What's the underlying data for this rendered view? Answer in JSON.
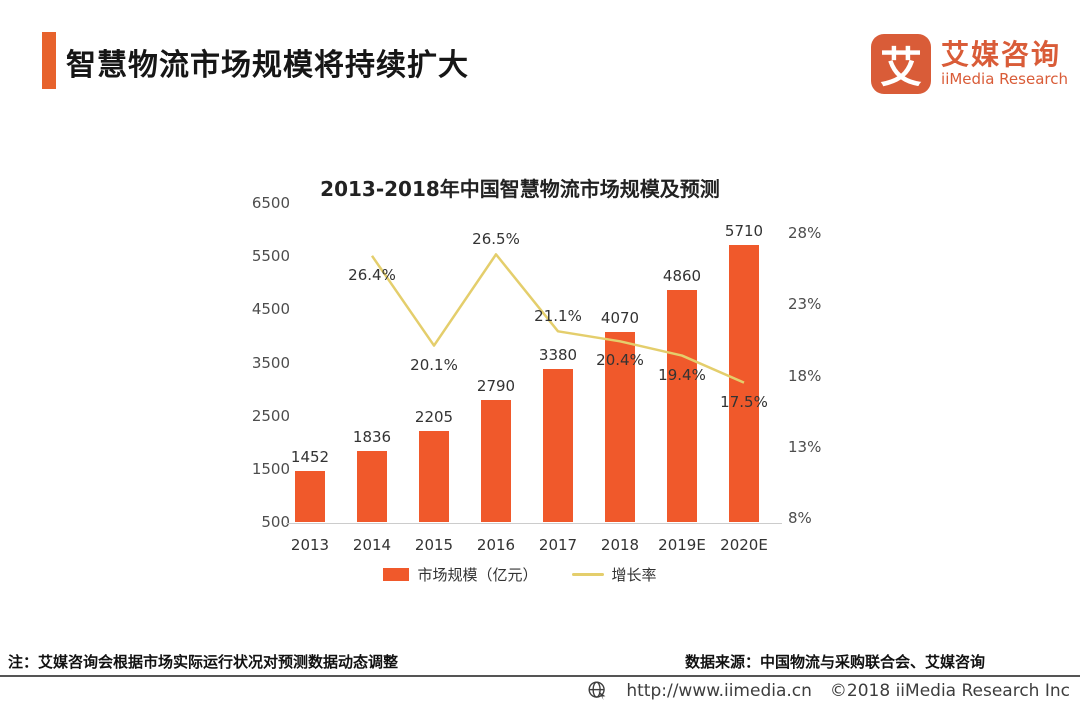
{
  "theme": {
    "accent": "#E7622C",
    "brand_orange": "#D95C38",
    "bar": "#F0592B",
    "line": "#E4CE6C"
  },
  "header": {
    "title": "智慧物流市场规模将持续扩大",
    "logo": {
      "mark_char": "艾",
      "name_cn": "艾媒咨询",
      "name_en": "iiMedia Research"
    }
  },
  "chart_data": {
    "type": "bar+line",
    "title": "2013-2018年中国智慧物流市场规模及预测",
    "categories": [
      "2013",
      "2014",
      "2015",
      "2016",
      "2017",
      "2018",
      "2019E",
      "2020E"
    ],
    "series": [
      {
        "name": "市场规模（亿元）",
        "type": "bar",
        "color": "#F0592B",
        "axis": "left",
        "values": [
          1452,
          1836,
          2205,
          2790,
          3380,
          4070,
          4860,
          5710
        ]
      },
      {
        "name": "增长率",
        "type": "line",
        "color": "#E4CE6C",
        "axis": "right",
        "values": [
          null,
          26.4,
          20.1,
          26.5,
          21.1,
          20.4,
          19.4,
          17.5
        ],
        "labels": [
          null,
          "26.4%",
          "20.1%",
          "26.5%",
          "21.1%",
          "20.4%",
          "19.4%",
          "17.5%"
        ],
        "label_positions": [
          null,
          "below",
          "below",
          "above",
          "above",
          "below",
          "below",
          "below"
        ]
      }
    ],
    "left_axis": {
      "min": 500,
      "max": 6500,
      "ticks": [
        "6500",
        "5500",
        "4500",
        "3500",
        "2500",
        "1500",
        "500"
      ]
    },
    "right_axis": {
      "min": 8,
      "max": 28,
      "ticks": [
        "28%",
        "23%",
        "18%",
        "13%",
        "8%"
      ]
    },
    "legend_position": "bottom",
    "grid": false
  },
  "footer": {
    "note": "注：艾媒咨询会根据市场实际运行状况对预测数据动态调整",
    "source": "数据来源：中国物流与采购联合会、艾媒咨询",
    "url": "http://www.iimedia.cn",
    "copyright": "©2018  iiMedia Research Inc"
  }
}
